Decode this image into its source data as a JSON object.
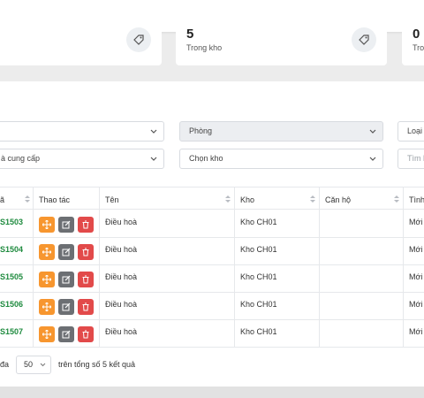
{
  "stats": [
    {
      "value": "",
      "label": ""
    },
    {
      "value": "5",
      "label": "Trong kho"
    },
    {
      "value": "0",
      "label": "Trong"
    }
  ],
  "filters": {
    "row1": [
      {
        "text": "",
        "state": "normal"
      },
      {
        "text": "Phòng",
        "state": "disabled"
      },
      {
        "text": "Loại t",
        "state": "normal"
      }
    ],
    "row2": [
      {
        "text": "à cung cấp",
        "state": "normal"
      },
      {
        "text": "Chọn kho",
        "state": "normal"
      },
      {
        "text": "Tìm k",
        "state": "placeholder"
      }
    ]
  },
  "table": {
    "headers": [
      "ã",
      "Thao tác",
      "Tên",
      "Kho",
      "Căn hộ",
      "Tình"
    ],
    "rows": [
      {
        "code": "S1503",
        "name": "Điều hoà",
        "warehouse": "Kho CH01",
        "apartment": "",
        "status": "Mới"
      },
      {
        "code": "S1504",
        "name": "Điều hoà",
        "warehouse": "Kho CH01",
        "apartment": "",
        "status": "Mới"
      },
      {
        "code": "S1505",
        "name": "Điều hoà",
        "warehouse": "Kho CH01",
        "apartment": "",
        "status": "Mới"
      },
      {
        "code": "S1506",
        "name": "Điều hoà",
        "warehouse": "Kho CH01",
        "apartment": "",
        "status": "Mới"
      },
      {
        "code": "S1507",
        "name": "Điều hoà",
        "warehouse": "Kho CH01",
        "apartment": "",
        "status": "Mới"
      }
    ]
  },
  "pagination": {
    "prefix": "đa",
    "page_size": "50",
    "summary": "trên tổng số 5 kết quả"
  },
  "colors": {
    "code": "#1f8b3f",
    "move_button": "#f7962f",
    "edit_button": "#6c6f73",
    "delete_button": "#e24a4a"
  }
}
